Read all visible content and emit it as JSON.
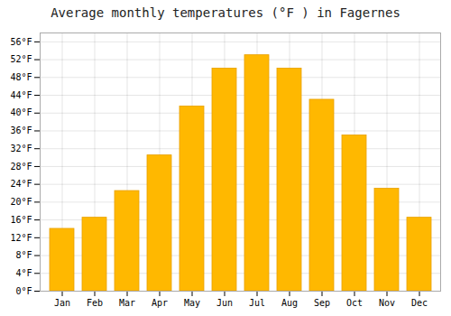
{
  "chart_data": {
    "type": "bar",
    "title": "Average monthly temperatures (°F ) in Fagernes",
    "categories": [
      "Jan",
      "Feb",
      "Mar",
      "Apr",
      "May",
      "Jun",
      "Jul",
      "Aug",
      "Sep",
      "Oct",
      "Nov",
      "Dec"
    ],
    "values": [
      14,
      16.5,
      22.5,
      30.5,
      41.5,
      50,
      53,
      50,
      43,
      35,
      23,
      16.5
    ],
    "color": "#FFB800",
    "ylim": [
      0,
      58
    ],
    "yticks": [
      {
        "value": 0,
        "label": "0°F"
      },
      {
        "value": 4,
        "label": "4°F"
      },
      {
        "value": 8,
        "label": "8°F"
      },
      {
        "value": 12,
        "label": "12°F"
      },
      {
        "value": 16,
        "label": "16°F"
      },
      {
        "value": 20,
        "label": "20°F"
      },
      {
        "value": 24,
        "label": "24°F"
      },
      {
        "value": 28,
        "label": "28°F"
      },
      {
        "value": 32,
        "label": "32°F"
      },
      {
        "value": 36,
        "label": "36°F"
      },
      {
        "value": 40,
        "label": "40°F"
      },
      {
        "value": 44,
        "label": "44°F"
      },
      {
        "value": 48,
        "label": "48°F"
      },
      {
        "value": 52,
        "label": "52°F"
      },
      {
        "value": 56,
        "label": "56°F"
      }
    ],
    "grid": true
  }
}
